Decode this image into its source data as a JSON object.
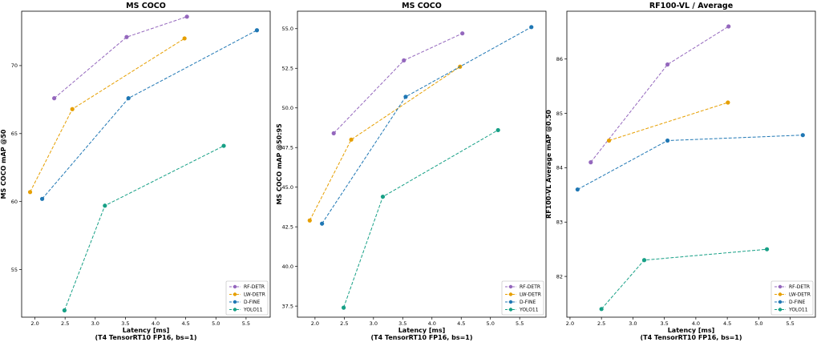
{
  "colors": {
    "RF-DETR": "#9467bd",
    "LW-DETR": "#e69f00",
    "D-FINE": "#1f77b4",
    "YOLO11": "#17a086"
  },
  "chart_data": [
    {
      "type": "line",
      "title": "MS COCO",
      "xlabel": "Latency [ms]",
      "xlabel2": "(T4 TensorRT10 FP16, bs=1)",
      "ylabel": "MS COCO mAP @50",
      "xlim": [
        1.78,
        5.9
      ],
      "ylim": [
        51.5,
        74.0
      ],
      "xticks": [
        2.0,
        2.5,
        3.0,
        3.5,
        4.0,
        4.5,
        5.0,
        5.5
      ],
      "xtick_labels": [
        "2.0",
        "2.5",
        "3.0",
        "3.5",
        "4.0",
        "4.5",
        "5.0",
        "5.5"
      ],
      "yticks": [
        55,
        60,
        65,
        70
      ],
      "ytick_labels": [
        "55",
        "60",
        "65",
        "70"
      ],
      "legend": "lower-right",
      "series": [
        {
          "name": "RF-DETR",
          "x": [
            2.32,
            3.52,
            4.52
          ],
          "y": [
            67.6,
            72.1,
            73.6
          ]
        },
        {
          "name": "LW-DETR",
          "x": [
            1.92,
            2.62,
            4.48
          ],
          "y": [
            60.7,
            66.8,
            72.0
          ]
        },
        {
          "name": "D-FINE",
          "x": [
            2.12,
            3.55,
            5.68
          ],
          "y": [
            60.2,
            67.6,
            72.6
          ]
        },
        {
          "name": "YOLO11",
          "x": [
            2.49,
            3.16,
            5.13
          ],
          "y": [
            52.0,
            59.7,
            64.1
          ]
        }
      ]
    },
    {
      "type": "line",
      "title": "MS COCO",
      "xlabel": "Latency [ms]",
      "xlabel2": "(T4 TensorRT10 FP16, bs=1)",
      "ylabel": "MS COCO mAP @50:95",
      "xlim": [
        1.7,
        5.95
      ],
      "ylim": [
        36.8,
        56.1
      ],
      "xticks": [
        2.0,
        2.5,
        3.0,
        3.5,
        4.0,
        4.5,
        5.0,
        5.5
      ],
      "xtick_labels": [
        "2.0",
        "2.5",
        "3.0",
        "3.5",
        "4.0",
        "4.5",
        "5.0",
        "5.5"
      ],
      "yticks": [
        37.5,
        40.0,
        42.5,
        45.0,
        47.5,
        50.0,
        52.5,
        55.0
      ],
      "ytick_labels": [
        "37.5",
        "40.0",
        "42.5",
        "45.0",
        "47.5",
        "50.0",
        "52.5",
        "55.0"
      ],
      "legend": "lower-right",
      "series": [
        {
          "name": "RF-DETR",
          "x": [
            2.32,
            3.52,
            4.52
          ],
          "y": [
            48.4,
            53.0,
            54.7
          ]
        },
        {
          "name": "LW-DETR",
          "x": [
            1.91,
            2.62,
            4.48
          ],
          "y": [
            42.9,
            48.0,
            52.6
          ]
        },
        {
          "name": "D-FINE",
          "x": [
            2.12,
            3.55,
            5.7
          ],
          "y": [
            42.7,
            50.7,
            55.1
          ]
        },
        {
          "name": "YOLO11",
          "x": [
            2.49,
            3.16,
            5.13
          ],
          "y": [
            37.4,
            44.4,
            48.6
          ]
        }
      ]
    },
    {
      "type": "line",
      "title": "RF100-VL / Average",
      "xlabel": "Latency [ms]",
      "xlabel2": "(T4 TensorRT10 FP16, bs=1)",
      "ylabel": "RF100-VL Average mAP @0.50",
      "xlim": [
        1.95,
        5.9
      ],
      "ylim": [
        81.25,
        86.88
      ],
      "xticks": [
        2.0,
        2.5,
        3.0,
        3.5,
        4.0,
        4.5,
        5.0,
        5.5
      ],
      "xtick_labels": [
        "2.0",
        "2.5",
        "3.0",
        "3.5",
        "4.0",
        "4.5",
        "5.0",
        "5.5"
      ],
      "yticks": [
        82,
        83,
        84,
        85,
        86
      ],
      "ytick_labels": [
        "82",
        "83",
        "84",
        "85",
        "86"
      ],
      "legend": "lower-right",
      "series": [
        {
          "name": "RF-DETR",
          "x": [
            2.33,
            3.55,
            4.52
          ],
          "y": [
            84.1,
            85.9,
            86.6
          ]
        },
        {
          "name": "LW-DETR",
          "x": [
            2.62,
            4.51
          ],
          "y": [
            84.5,
            85.2
          ]
        },
        {
          "name": "D-FINE",
          "x": [
            2.12,
            3.55,
            5.7
          ],
          "y": [
            83.6,
            84.5,
            84.6
          ]
        },
        {
          "name": "YOLO11",
          "x": [
            2.5,
            3.18,
            5.13
          ],
          "y": [
            81.4,
            82.3,
            82.5
          ]
        }
      ]
    }
  ]
}
